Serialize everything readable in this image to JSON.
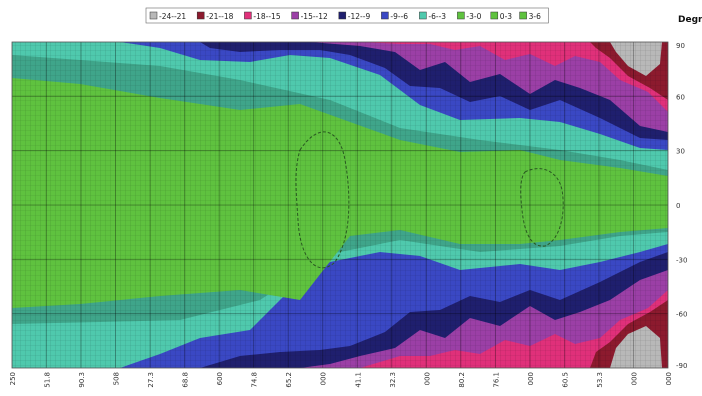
{
  "chart_data": {
    "type": "heatmap",
    "title": "",
    "y_unit_label": "Degree",
    "xlabel": "",
    "ylabel": "",
    "grid": true,
    "legend_position": "top",
    "legend": [
      {
        "label": "-24--21",
        "color": "#b8b8b8"
      },
      {
        "label": "-21--18",
        "color": "#8c1a2e"
      },
      {
        "label": "-18--15",
        "color": "#e0307a"
      },
      {
        "label": "-15--12",
        "color": "#9b3fa6"
      },
      {
        "label": "-12--9",
        "color": "#1f1f6e"
      },
      {
        "label": "-9--6",
        "color": "#3a48c4"
      },
      {
        "label": "-6--3",
        "color": "#4fc9ad"
      },
      {
        "label": "-3-0",
        "color": "#5fc23f"
      },
      {
        "label": "0-3",
        "color": "#5fc23f"
      },
      {
        "label": "3-6",
        "color": "#5fc23f"
      }
    ],
    "y_ticks": [
      "90",
      "60",
      "30",
      "0",
      "-30",
      "-60",
      "-90"
    ],
    "ylim": [
      -90,
      90
    ],
    "x_ticks": [
      "250",
      "51.8",
      "90.3",
      "508",
      "27.3",
      "68.8",
      "600",
      "74.8",
      "65.2",
      "000",
      "41.1",
      "32.3",
      "000",
      "80.2",
      "76.1",
      "000",
      "60.5",
      "53.3",
      "000",
      "000"
    ],
    "bands_description": "contour fill from centre outward: green (-3-0) core, teal (-6--3), blue (-9--6), navy (-12--9), purple (-15--12), magenta (-18--15), dark red (-21--18), grey (-24--21) at far right edges"
  }
}
